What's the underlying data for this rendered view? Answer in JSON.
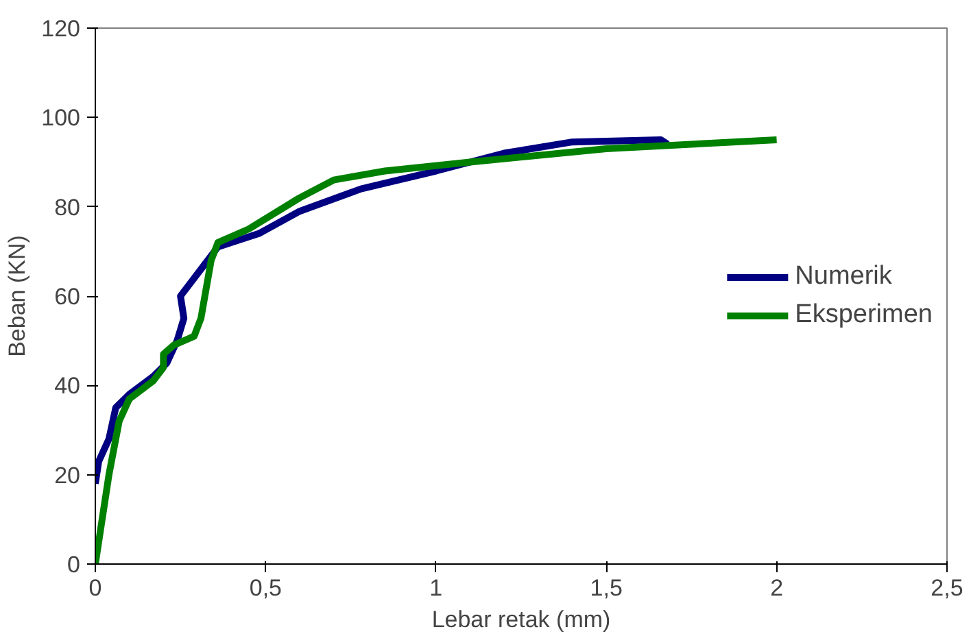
{
  "chart_data": {
    "type": "line",
    "xlabel": "Lebar retak (mm)",
    "ylabel": "Beban (KN)",
    "xlim": [
      0,
      2.5
    ],
    "ylim": [
      0,
      120
    ],
    "xticks": [
      0,
      {
        "value": 0.5,
        "label": "0,5"
      },
      1,
      {
        "value": 1.5,
        "label": "1,5"
      },
      2,
      {
        "value": 2.5,
        "label": "2,5"
      }
    ],
    "yticks": [
      0,
      20,
      40,
      60,
      80,
      100,
      120
    ],
    "grid": false,
    "legend": "center right",
    "marker": "none",
    "line_style": "solid",
    "series": [
      {
        "name": "Numerik",
        "color": "#000080",
        "x": [
          0,
          0.01,
          0.04,
          0.06,
          0.1,
          0.17,
          0.21,
          0.24,
          0.26,
          0.25,
          0.28,
          0.32,
          0.36,
          0.48,
          0.6,
          0.78,
          1.0,
          1.2,
          1.4,
          1.66,
          1.68
        ],
        "values": [
          18,
          23,
          28,
          35,
          38,
          42,
          45,
          50,
          55,
          60,
          63,
          67,
          71,
          74,
          79,
          84,
          88,
          92,
          94.5,
          95,
          94
        ]
      },
      {
        "name": "Eksperimen",
        "color": "#008000",
        "x": [
          0,
          0.04,
          0.07,
          0.1,
          0.17,
          0.2,
          0.2,
          0.23,
          0.29,
          0.31,
          0.34,
          0.36,
          0.45,
          0.6,
          0.7,
          0.85,
          1.1,
          1.5,
          2.0
        ],
        "values": [
          0,
          20,
          32,
          37,
          41,
          44,
          47,
          49,
          51,
          55,
          68,
          72,
          75,
          82,
          86,
          88,
          90,
          93,
          95
        ]
      }
    ]
  }
}
